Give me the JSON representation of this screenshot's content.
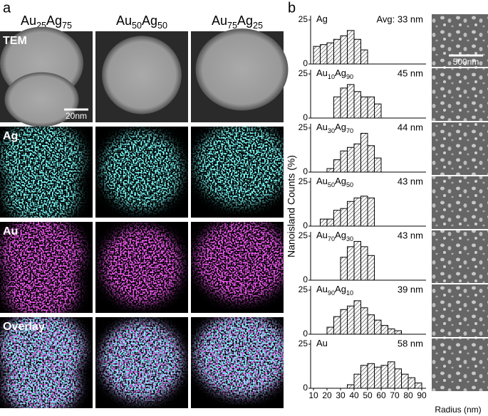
{
  "panel_a": {
    "label": "a",
    "columns": [
      "Au25Ag75",
      "Au50Ag50",
      "Au75Ag25"
    ],
    "rows": [
      "TEM",
      "Ag",
      "Au",
      "Overlay"
    ],
    "scale_bar": "20nm"
  },
  "panel_b": {
    "label": "b",
    "scale_bar": "500nm",
    "y_label": "Nanoisland Counts (%)",
    "x_label": "Radius (nm)"
  },
  "chart_data": [
    {
      "type": "histogram",
      "title": "Ag",
      "annotation": "Avg: 33 nm",
      "bins": [
        10,
        15,
        20,
        25,
        30,
        35,
        40,
        45,
        50
      ],
      "values": [
        10,
        11,
        12,
        14,
        16,
        19,
        14,
        8
      ],
      "xlim": [
        10,
        90
      ],
      "ylim": [
        0,
        25
      ],
      "yticks": [
        0,
        25
      ]
    },
    {
      "type": "histogram",
      "title": "Au10Ag90",
      "annotation": "45 nm",
      "bins": [
        25,
        30,
        35,
        40,
        45,
        50,
        55,
        60
      ],
      "values": [
        12,
        17,
        19,
        15,
        12,
        12,
        8
      ],
      "xlim": [
        10,
        90
      ],
      "ylim": [
        0,
        25
      ],
      "yticks": [
        0,
        25
      ]
    },
    {
      "type": "histogram",
      "title": "Au30Ag70",
      "annotation": "44 nm",
      "bins": [
        20,
        25,
        30,
        35,
        40,
        45,
        50,
        55,
        60
      ],
      "values": [
        2,
        7,
        12,
        14,
        16,
        22,
        15,
        8
      ],
      "xlim": [
        10,
        90
      ],
      "ylim": [
        0,
        25
      ],
      "yticks": [
        0,
        25
      ]
    },
    {
      "type": "histogram",
      "title": "Au50Ag50",
      "annotation": "43 nm",
      "bins": [
        15,
        20,
        25,
        30,
        35,
        40,
        45,
        50,
        55
      ],
      "values": [
        4,
        4,
        9,
        10,
        14,
        16,
        17,
        16
      ],
      "xlim": [
        10,
        90
      ],
      "ylim": [
        0,
        25
      ],
      "yticks": [
        0,
        25
      ]
    },
    {
      "type": "histogram",
      "title": "Au70Ag30",
      "annotation": "43 nm",
      "bins": [
        30,
        35,
        40,
        45,
        50,
        55
      ],
      "values": [
        13,
        19,
        22,
        19,
        14
      ],
      "xlim": [
        10,
        90
      ],
      "ylim": [
        0,
        25
      ],
      "yticks": [
        0,
        25
      ]
    },
    {
      "type": "histogram",
      "title": "Au90Ag10",
      "annotation": "39 nm",
      "bins": [
        20,
        25,
        30,
        35,
        40,
        45,
        50,
        55,
        60,
        65,
        70,
        75
      ],
      "values": [
        4,
        10,
        14,
        16,
        19,
        15,
        11,
        8,
        5,
        3,
        2
      ],
      "xlim": [
        10,
        90
      ],
      "ylim": [
        0,
        25
      ],
      "yticks": [
        0,
        25
      ]
    },
    {
      "type": "histogram",
      "title": "Au",
      "annotation": "58 nm",
      "bins": [
        35,
        40,
        45,
        50,
        55,
        60,
        65,
        70,
        75,
        80,
        85,
        90
      ],
      "values": [
        2,
        8,
        13,
        14,
        12,
        13,
        15,
        11,
        8,
        6,
        3
      ],
      "xlim": [
        10,
        90
      ],
      "ylim": [
        0,
        25
      ],
      "yticks": [
        0,
        25
      ],
      "xticks": [
        10,
        20,
        30,
        40,
        50,
        60,
        70,
        80,
        90
      ]
    }
  ]
}
